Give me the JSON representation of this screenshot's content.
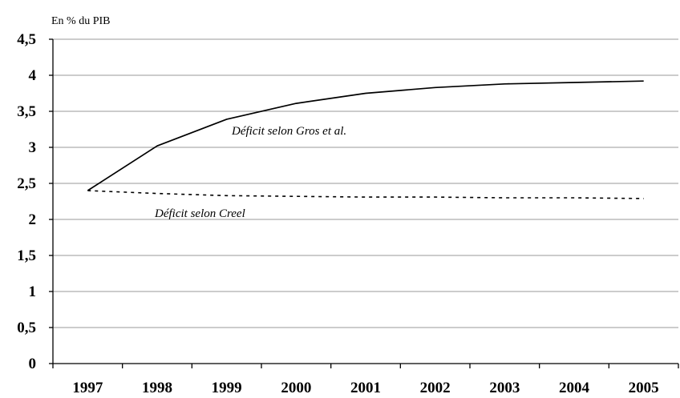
{
  "chart_data": {
    "type": "line",
    "title": "",
    "xlabel": "",
    "ylabel": "En % du PIB",
    "x": [
      "1997",
      "1998",
      "1999",
      "2000",
      "2001",
      "2002",
      "2003",
      "2004",
      "2005"
    ],
    "ylim": [
      0,
      4.5
    ],
    "yticks": [
      "0",
      "0,5",
      "1",
      "1,5",
      "2",
      "2,5",
      "3",
      "3,5",
      "4",
      "4,5"
    ],
    "grid": true,
    "series": [
      {
        "label": "Déficit selon Gros et al.",
        "style": "solid",
        "color": "#000000",
        "values": [
          2.4,
          3.02,
          3.39,
          3.61,
          3.75,
          3.83,
          3.88,
          3.9,
          3.92
        ]
      },
      {
        "label": "Déficit selon Creel",
        "style": "dotted",
        "color": "#000000",
        "values": [
          2.4,
          2.36,
          2.33,
          2.32,
          2.31,
          2.31,
          2.3,
          2.3,
          2.29
        ]
      }
    ]
  }
}
